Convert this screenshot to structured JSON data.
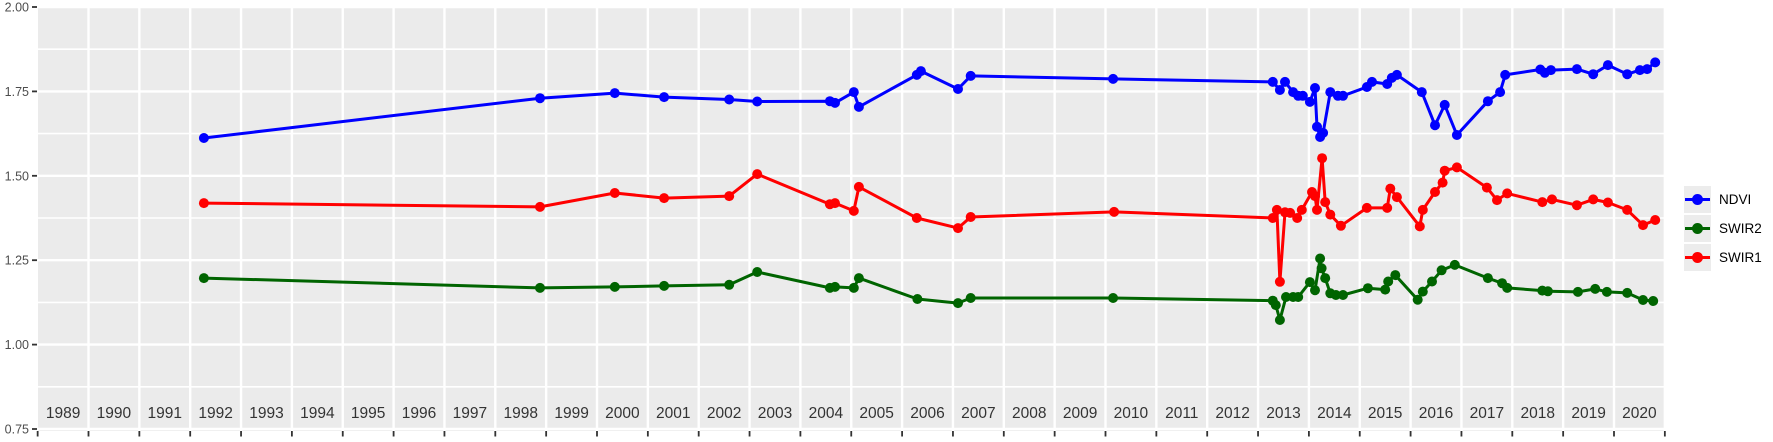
{
  "figure": {
    "background": "#FFFFFF",
    "panel_background": "#EBEBEB",
    "gridline_color": "#FFFFFF",
    "y_axis_text_color": "#4D4D4D",
    "x_axis_text_color": "#333333",
    "tick_color": "#333333"
  },
  "legend": {
    "key_fill": "#ECECEC",
    "items": [
      {
        "label": "NDVI",
        "color": "#0000FF"
      },
      {
        "label": "SWIR2",
        "color": "#006400"
      },
      {
        "label": "SWIR1",
        "color": "#FF0000"
      }
    ]
  },
  "chart_data": {
    "type": "line",
    "title": "",
    "xlabel": "",
    "ylabel": "",
    "grid": true,
    "legend_position": "right",
    "xlim": [
      1989.0,
      2021.03
    ],
    "ylim": [
      0.744,
      2.003
    ],
    "x_ticks": [
      1989,
      1990,
      1991,
      1992,
      1993,
      1994,
      1995,
      1996,
      1997,
      1998,
      1999,
      2000,
      2001,
      2002,
      2003,
      2004,
      2005,
      2006,
      2007,
      2008,
      2009,
      2010,
      2011,
      2012,
      2013,
      2014,
      2015,
      2016,
      2017,
      2018,
      2019,
      2020
    ],
    "y_ticks": [
      "2.00",
      "1.75",
      "1.50",
      "1.25",
      "1.00",
      "0.75"
    ],
    "y_tick_values": [
      2.0,
      1.75,
      1.5,
      1.25,
      1.0,
      0.75
    ],
    "y_minor_ticks": [
      1.875,
      1.625,
      1.375,
      1.125,
      0.875
    ],
    "series": [
      {
        "name": "NDVI",
        "color": "#0000FF",
        "points": [
          [
            1992.27,
            1.612
          ],
          [
            1998.88,
            1.73
          ],
          [
            2000.35,
            1.745
          ],
          [
            2001.32,
            1.733
          ],
          [
            2002.6,
            1.726
          ],
          [
            2003.15,
            1.72
          ],
          [
            2004.58,
            1.721
          ],
          [
            2004.68,
            1.716
          ],
          [
            2005.05,
            1.748
          ],
          [
            2005.15,
            1.704
          ],
          [
            2006.29,
            1.799
          ],
          [
            2006.37,
            1.81
          ],
          [
            2007.1,
            1.757
          ],
          [
            2007.35,
            1.796
          ],
          [
            2010.15,
            1.787
          ],
          [
            2013.29,
            1.778
          ],
          [
            2013.43,
            1.754
          ],
          [
            2013.53,
            1.778
          ],
          [
            2013.69,
            1.748
          ],
          [
            2013.79,
            1.737
          ],
          [
            2013.88,
            1.737
          ],
          [
            2014.02,
            1.719
          ],
          [
            2014.12,
            1.76
          ],
          [
            2014.16,
            1.645
          ],
          [
            2014.22,
            1.615
          ],
          [
            2014.28,
            1.627
          ],
          [
            2014.42,
            1.748
          ],
          [
            2014.57,
            1.737
          ],
          [
            2014.67,
            1.737
          ],
          [
            2015.14,
            1.763
          ],
          [
            2015.24,
            1.778
          ],
          [
            2015.54,
            1.772
          ],
          [
            2015.63,
            1.79
          ],
          [
            2015.73,
            1.799
          ],
          [
            2016.22,
            1.748
          ],
          [
            2016.48,
            1.65
          ],
          [
            2016.67,
            1.71
          ],
          [
            2016.91,
            1.621
          ],
          [
            2017.52,
            1.721
          ],
          [
            2017.76,
            1.748
          ],
          [
            2017.86,
            1.799
          ],
          [
            2018.55,
            1.815
          ],
          [
            2018.64,
            1.805
          ],
          [
            2018.76,
            1.813
          ],
          [
            2019.27,
            1.816
          ],
          [
            2019.59,
            1.801
          ],
          [
            2019.88,
            1.828
          ],
          [
            2020.26,
            1.801
          ],
          [
            2020.51,
            1.813
          ],
          [
            2020.65,
            1.816
          ],
          [
            2020.81,
            1.836
          ]
        ]
      },
      {
        "name": "SWIR2",
        "color": "#006400",
        "points": [
          [
            1992.27,
            1.197
          ],
          [
            1998.88,
            1.168
          ],
          [
            2000.35,
            1.171
          ],
          [
            2001.32,
            1.174
          ],
          [
            2002.6,
            1.177
          ],
          [
            2003.15,
            1.215
          ],
          [
            2004.58,
            1.168
          ],
          [
            2004.68,
            1.171
          ],
          [
            2005.05,
            1.168
          ],
          [
            2005.15,
            1.197
          ],
          [
            2006.3,
            1.135
          ],
          [
            2007.1,
            1.123
          ],
          [
            2007.35,
            1.138
          ],
          [
            2010.15,
            1.138
          ],
          [
            2013.29,
            1.13
          ],
          [
            2013.35,
            1.117
          ],
          [
            2013.43,
            1.073
          ],
          [
            2013.55,
            1.141
          ],
          [
            2013.69,
            1.141
          ],
          [
            2013.79,
            1.141
          ],
          [
            2014.02,
            1.185
          ],
          [
            2014.12,
            1.161
          ],
          [
            2014.22,
            1.255
          ],
          [
            2014.25,
            1.226
          ],
          [
            2014.32,
            1.197
          ],
          [
            2014.42,
            1.152
          ],
          [
            2014.53,
            1.147
          ],
          [
            2014.67,
            1.147
          ],
          [
            2015.16,
            1.167
          ],
          [
            2015.5,
            1.163
          ],
          [
            2015.56,
            1.187
          ],
          [
            2015.7,
            1.206
          ],
          [
            2016.14,
            1.133
          ],
          [
            2016.24,
            1.157
          ],
          [
            2016.42,
            1.187
          ],
          [
            2016.61,
            1.22
          ],
          [
            2016.87,
            1.236
          ],
          [
            2017.52,
            1.197
          ],
          [
            2017.8,
            1.182
          ],
          [
            2017.9,
            1.168
          ],
          [
            2018.59,
            1.16
          ],
          [
            2018.7,
            1.158
          ],
          [
            2019.29,
            1.156
          ],
          [
            2019.63,
            1.165
          ],
          [
            2019.86,
            1.156
          ],
          [
            2020.26,
            1.153
          ],
          [
            2020.57,
            1.132
          ],
          [
            2020.77,
            1.129
          ]
        ]
      },
      {
        "name": "SWIR1",
        "color": "#FF0000",
        "points": [
          [
            1992.27,
            1.419
          ],
          [
            1998.88,
            1.408
          ],
          [
            2000.35,
            1.449
          ],
          [
            2001.32,
            1.434
          ],
          [
            2002.6,
            1.44
          ],
          [
            2003.15,
            1.505
          ],
          [
            2004.58,
            1.416
          ],
          [
            2004.68,
            1.419
          ],
          [
            2005.05,
            1.396
          ],
          [
            2005.15,
            1.467
          ],
          [
            2006.29,
            1.375
          ],
          [
            2007.1,
            1.345
          ],
          [
            2007.35,
            1.378
          ],
          [
            2010.17,
            1.393
          ],
          [
            2013.29,
            1.375
          ],
          [
            2013.37,
            1.399
          ],
          [
            2013.43,
            1.186
          ],
          [
            2013.53,
            1.392
          ],
          [
            2013.63,
            1.39
          ],
          [
            2013.77,
            1.375
          ],
          [
            2013.86,
            1.399
          ],
          [
            2014.06,
            1.452
          ],
          [
            2014.12,
            1.44
          ],
          [
            2014.16,
            1.399
          ],
          [
            2014.26,
            1.552
          ],
          [
            2014.32,
            1.422
          ],
          [
            2014.42,
            1.385
          ],
          [
            2014.63,
            1.352
          ],
          [
            2015.14,
            1.405
          ],
          [
            2015.54,
            1.405
          ],
          [
            2015.6,
            1.462
          ],
          [
            2015.73,
            1.437
          ],
          [
            2016.18,
            1.35
          ],
          [
            2016.24,
            1.399
          ],
          [
            2016.48,
            1.452
          ],
          [
            2016.63,
            1.48
          ],
          [
            2016.67,
            1.515
          ],
          [
            2016.91,
            1.525
          ],
          [
            2017.5,
            1.465
          ],
          [
            2017.7,
            1.428
          ],
          [
            2017.9,
            1.448
          ],
          [
            2018.59,
            1.422
          ],
          [
            2018.78,
            1.43
          ],
          [
            2019.27,
            1.413
          ],
          [
            2019.59,
            1.43
          ],
          [
            2019.88,
            1.421
          ],
          [
            2020.26,
            1.399
          ],
          [
            2020.57,
            1.354
          ],
          [
            2020.81,
            1.369
          ]
        ]
      }
    ]
  }
}
